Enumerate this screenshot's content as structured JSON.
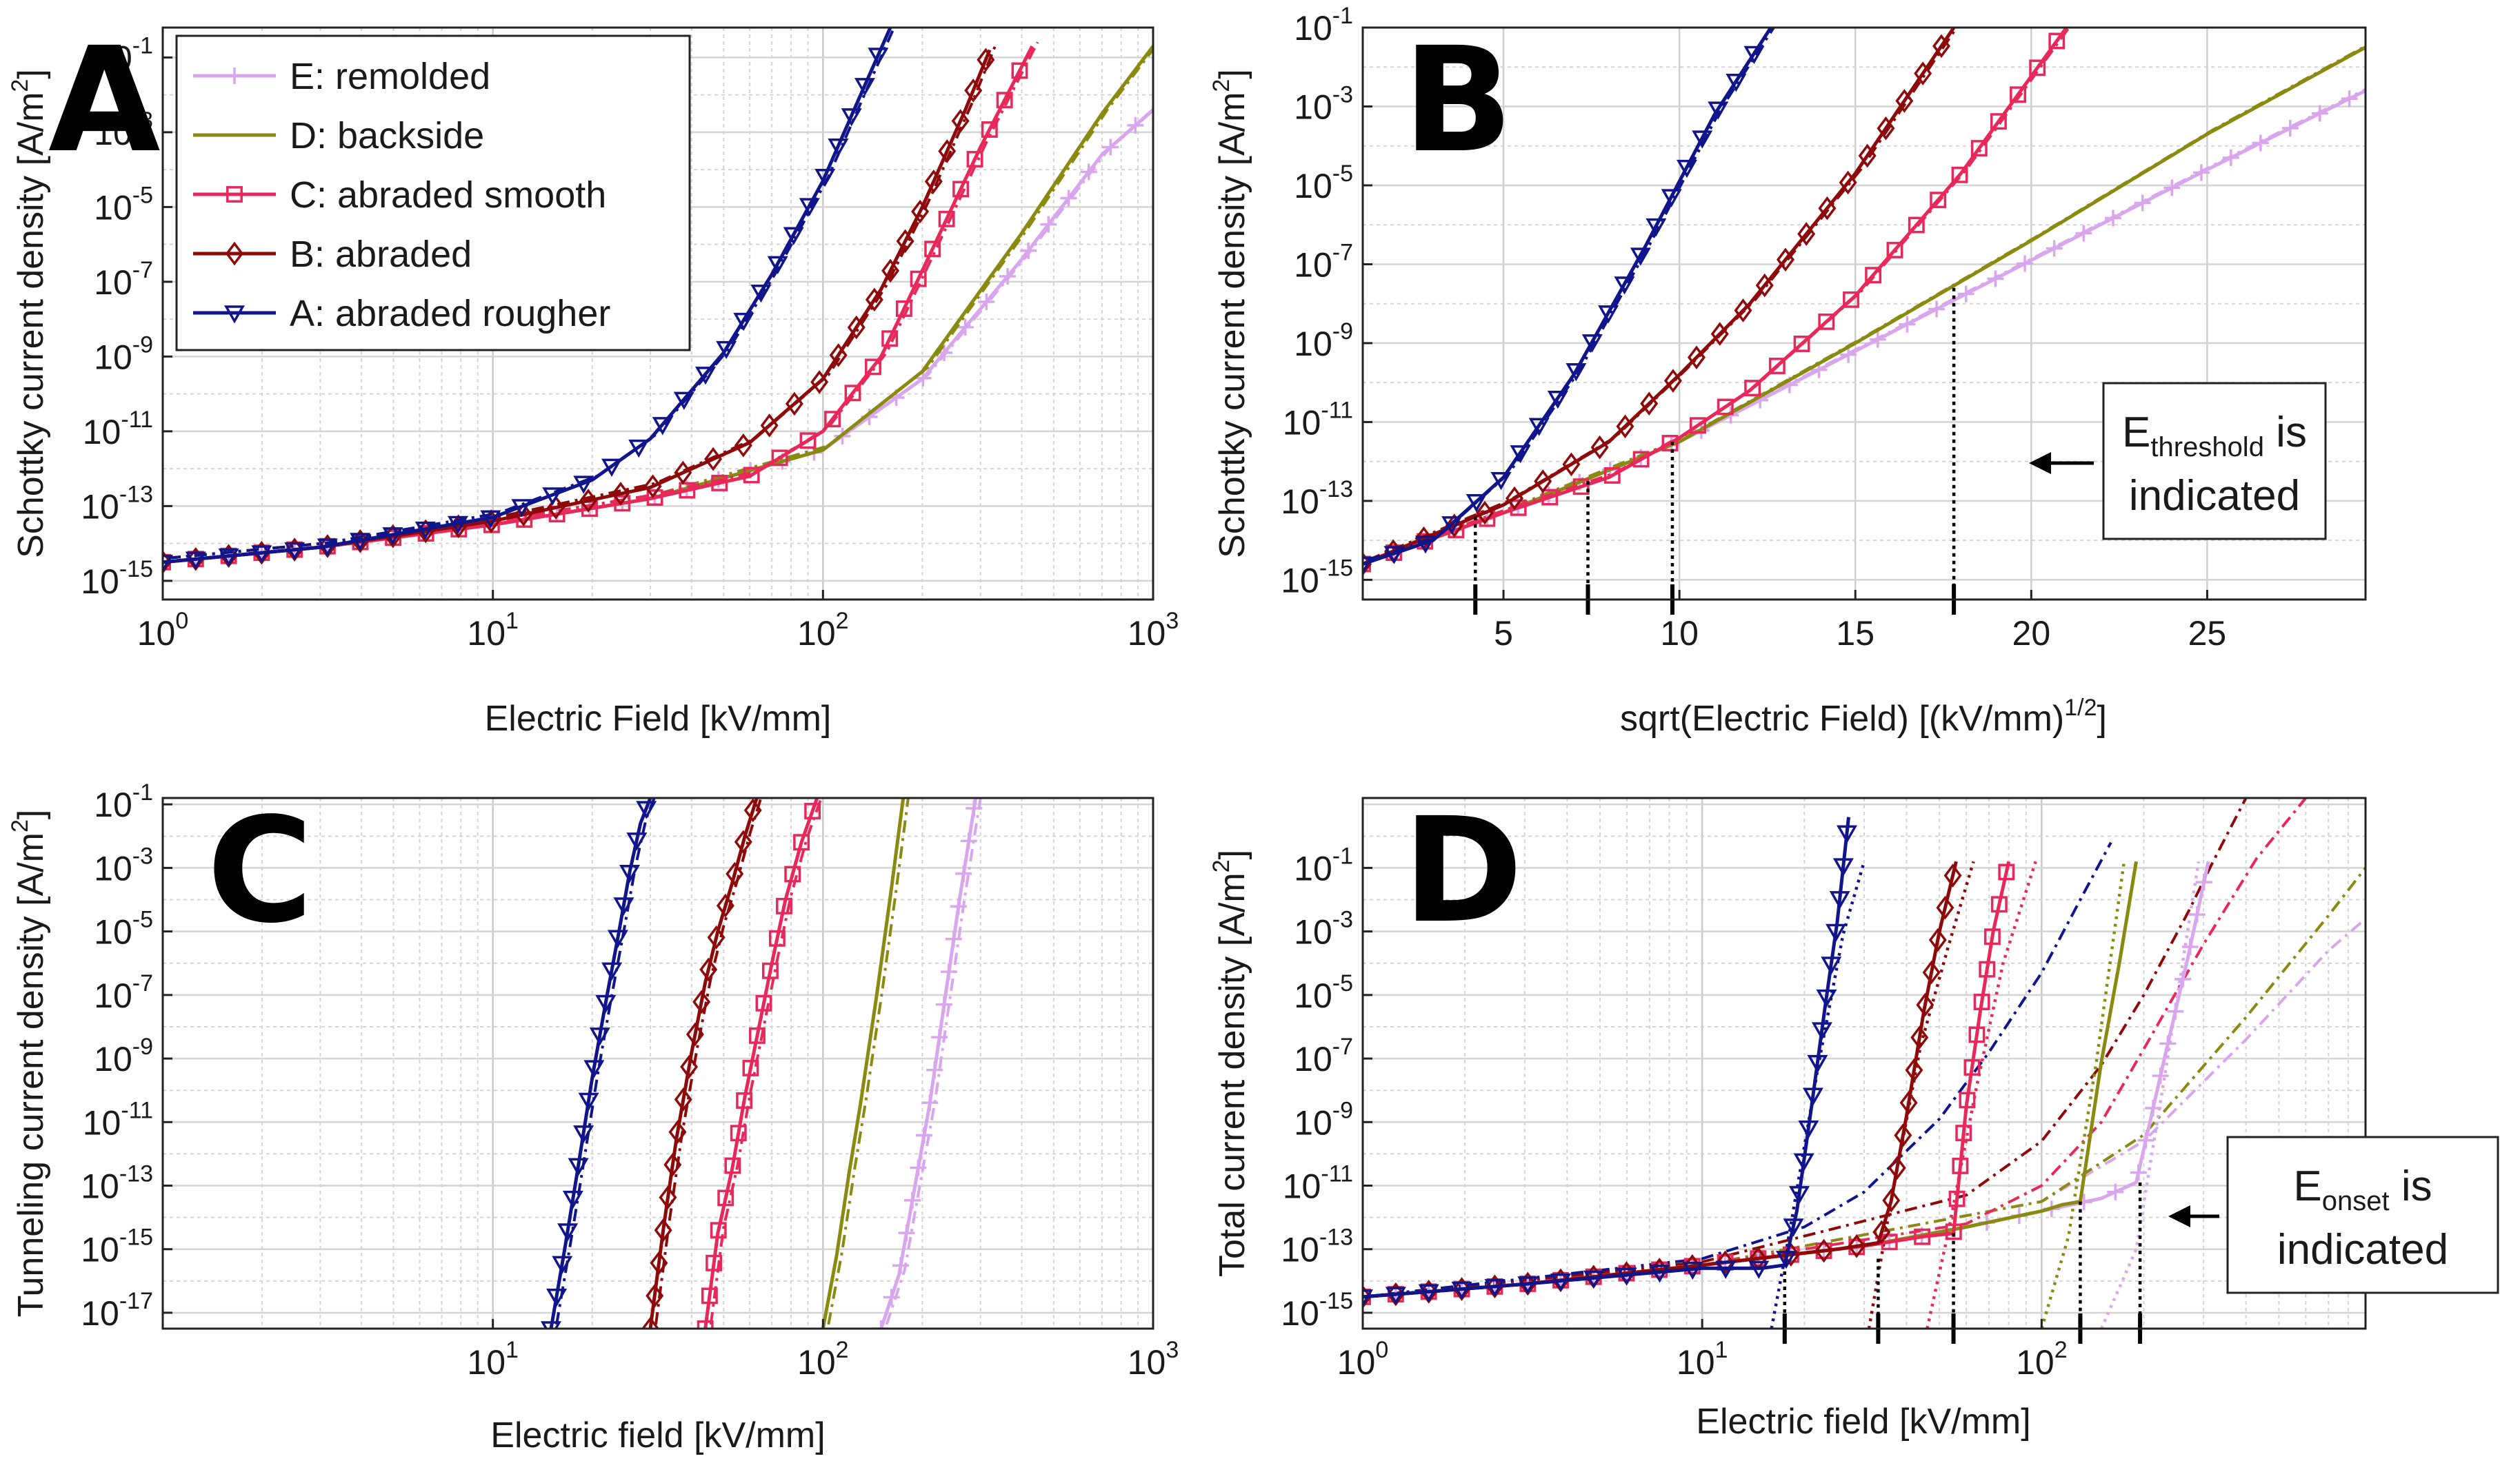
{
  "colors": {
    "E": "#d9a6ee",
    "D": "#8a8a10",
    "C": "#e8285a",
    "B": "#8e0a0a",
    "A": "#10158c"
  },
  "legend": [
    {
      "key": "E",
      "label": "E: remolded",
      "marker": "plus"
    },
    {
      "key": "D",
      "label": "D: backside",
      "marker": "none"
    },
    {
      "key": "C",
      "label": "C: abraded smooth",
      "marker": "square"
    },
    {
      "key": "B",
      "label": "B: abraded",
      "marker": "diamond"
    },
    {
      "key": "A",
      "label": "A: abraded rougher",
      "marker": "triangle"
    }
  ],
  "chart_data": [
    {
      "panel": "A",
      "type": "line",
      "xscale": "log",
      "yscale": "log",
      "xlabel": "Electric Field [kV/mm]",
      "ylabel": "Schottky current density [A/m",
      "ylabel_sup": "2",
      "ylabel_end": "]",
      "xlim": [
        1,
        1000
      ],
      "ylim_exp": [
        -15.5,
        -0.2
      ],
      "xticks": [
        {
          "v": 1,
          "base": "10",
          "exp": "0"
        },
        {
          "v": 10,
          "base": "10",
          "exp": "1"
        },
        {
          "v": 100,
          "base": "10",
          "exp": "2"
        },
        {
          "v": 1000,
          "base": "10",
          "exp": "3"
        }
      ],
      "yticks": [
        {
          "e": -1,
          "base": "10",
          "exp": "-1"
        },
        {
          "e": -3,
          "base": "10",
          "exp": "-3"
        },
        {
          "e": -5,
          "base": "10",
          "exp": "-5"
        },
        {
          "e": -7,
          "base": "10",
          "exp": "-7"
        },
        {
          "e": -9,
          "base": "10",
          "exp": "-9"
        },
        {
          "e": -11,
          "base": "10",
          "exp": "-11"
        },
        {
          "e": -13,
          "base": "10",
          "exp": "-13"
        },
        {
          "e": -15,
          "base": "10",
          "exp": "-15"
        }
      ],
      "series": [
        {
          "name": "E: remolded",
          "key": "E",
          "x": [
            1,
            3,
            10,
            30,
            100,
            200,
            400,
            700,
            1000
          ],
          "log10y": [
            -14.5,
            -14.1,
            -13.5,
            -12.8,
            -11.5,
            -9.6,
            -6.4,
            -3.6,
            -2.4
          ]
        },
        {
          "name": "D: backside",
          "key": "D",
          "x": [
            1,
            3,
            10,
            30,
            100,
            200,
            400,
            700,
            1000
          ],
          "log10y": [
            -14.5,
            -14.1,
            -13.5,
            -12.8,
            -11.5,
            -9.4,
            -5.7,
            -2.5,
            -0.7
          ]
        },
        {
          "name": "C: abraded smooth",
          "key": "C",
          "x": [
            1,
            3,
            10,
            30,
            60,
            100,
            150,
            200,
            300,
            430
          ],
          "log10y": [
            -14.5,
            -14.1,
            -13.5,
            -12.8,
            -12.2,
            -11.0,
            -9.0,
            -6.7,
            -3.4,
            -0.7
          ]
        },
        {
          "name": "B: abraded",
          "key": "B",
          "x": [
            1,
            3,
            10,
            30,
            60,
            100,
            150,
            200,
            270,
            320
          ],
          "log10y": [
            -14.5,
            -14.1,
            -13.4,
            -12.5,
            -11.3,
            -9.6,
            -7.2,
            -5.0,
            -2.4,
            -0.8
          ]
        },
        {
          "name": "A: abraded rougher",
          "key": "A",
          "x": [
            1,
            3,
            10,
            20,
            30,
            50,
            70,
            100,
            130,
            160
          ],
          "log10y": [
            -14.5,
            -14.1,
            -13.3,
            -12.3,
            -11.2,
            -8.9,
            -6.8,
            -4.3,
            -2.0,
            -0.2
          ]
        }
      ]
    },
    {
      "panel": "B",
      "type": "line",
      "xscale": "linear",
      "yscale": "log",
      "xlabel": "sqrt(Electric Field) [(kV/mm)",
      "xlabel_sup": "1/2",
      "xlabel_end": "]",
      "ylabel": "Schottky current density [A/m",
      "ylabel_sup": "2",
      "ylabel_end": "]",
      "xlim": [
        1,
        29.5
      ],
      "ylim_exp": [
        -15.5,
        -1
      ],
      "xticks": [
        {
          "v": 5,
          "label": "5"
        },
        {
          "v": 10,
          "label": "10"
        },
        {
          "v": 15,
          "label": "15"
        },
        {
          "v": 20,
          "label": "20"
        },
        {
          "v": 25,
          "label": "25"
        }
      ],
      "yticks": [
        {
          "e": -1,
          "base": "10",
          "exp": "-1"
        },
        {
          "e": -3,
          "base": "10",
          "exp": "-3"
        },
        {
          "e": -5,
          "base": "10",
          "exp": "-5"
        },
        {
          "e": -7,
          "base": "10",
          "exp": "-7"
        },
        {
          "e": -9,
          "base": "10",
          "exp": "-9"
        },
        {
          "e": -11,
          "base": "10",
          "exp": "-11"
        },
        {
          "e": -13,
          "base": "10",
          "exp": "-13"
        },
        {
          "e": -15,
          "base": "10",
          "exp": "-15"
        }
      ],
      "thresholds": [
        {
          "x": 4.2,
          "log10y": -13.4
        },
        {
          "x": 7.4,
          "log10y": -12.5
        },
        {
          "x": 9.8,
          "log10y": -11.5
        },
        {
          "x": 17.8,
          "log10y": -7.6
        }
      ],
      "series": [
        {
          "name": "E: remolded",
          "key": "E",
          "x": [
            1,
            5,
            10,
            15,
            20,
            25,
            29.5
          ],
          "log10y": [
            -14.6,
            -13.3,
            -11.5,
            -9.2,
            -6.9,
            -4.6,
            -2.6
          ]
        },
        {
          "name": "D: backside",
          "key": "D",
          "x": [
            1,
            5,
            10,
            15,
            20,
            25,
            29.5
          ],
          "log10y": [
            -14.6,
            -13.3,
            -11.5,
            -9.0,
            -6.4,
            -3.7,
            -1.5
          ]
        },
        {
          "name": "C: abraded smooth",
          "key": "C",
          "x": [
            1,
            5,
            8,
            10,
            12,
            15,
            18,
            21
          ],
          "log10y": [
            -14.6,
            -13.3,
            -12.4,
            -11.4,
            -10.2,
            -7.8,
            -4.7,
            -1.0
          ]
        },
        {
          "name": "B: abraded",
          "key": "B",
          "x": [
            1,
            5,
            8,
            10,
            12,
            15,
            17.8
          ],
          "log10y": [
            -14.6,
            -13.1,
            -11.5,
            -9.8,
            -8.0,
            -4.7,
            -1.0
          ]
        },
        {
          "name": "A: abraded rougher",
          "key": "A",
          "x": [
            1,
            3,
            5,
            7,
            9,
            11,
            12.6
          ],
          "log10y": [
            -14.6,
            -14.0,
            -12.4,
            -9.8,
            -6.6,
            -3.2,
            -1.0
          ]
        }
      ],
      "annotation": {
        "e_text": "E",
        "sub_text": "threshold",
        "rest_text": " is",
        "line2": "indicated"
      }
    },
    {
      "panel": "C",
      "type": "line",
      "xscale": "log",
      "yscale": "log",
      "xlabel": "Electric field [kV/mm]",
      "ylabel": "Tunneling current density [A/m",
      "ylabel_sup": "2",
      "ylabel_end": "]",
      "xlim": [
        1,
        1000
      ],
      "ylim_exp": [
        -17.5,
        -0.8
      ],
      "xticks": [
        {
          "v": 10,
          "base": "10",
          "exp": "1"
        },
        {
          "v": 100,
          "base": "10",
          "exp": "2"
        },
        {
          "v": 1000,
          "base": "10",
          "exp": "3"
        }
      ],
      "yticks": [
        {
          "e": -1,
          "base": "10",
          "exp": "-1"
        },
        {
          "e": -3,
          "base": "10",
          "exp": "-3"
        },
        {
          "e": -5,
          "base": "10",
          "exp": "-5"
        },
        {
          "e": -7,
          "base": "10",
          "exp": "-7"
        },
        {
          "e": -9,
          "base": "10",
          "exp": "-9"
        },
        {
          "e": -11,
          "base": "10",
          "exp": "-11"
        },
        {
          "e": -13,
          "base": "10",
          "exp": "-13"
        },
        {
          "e": -15,
          "base": "10",
          "exp": "-15"
        },
        {
          "e": -17,
          "base": "10",
          "exp": "-17"
        }
      ],
      "series": [
        {
          "name": "E: remolded",
          "key": "E",
          "x": [
            150,
            170,
            190,
            210,
            235,
            260,
            290
          ],
          "log10y": [
            -17.5,
            -15.8,
            -13.0,
            -10.5,
            -7.0,
            -3.9,
            -0.8
          ]
        },
        {
          "name": "D: backside",
          "key": "D",
          "x": [
            100,
            110,
            120,
            130,
            145,
            160,
            175
          ],
          "log10y": [
            -17.5,
            -15.2,
            -12.6,
            -10.4,
            -7.1,
            -3.9,
            -0.8
          ]
        },
        {
          "name": "C: abraded smooth",
          "key": "C",
          "x": [
            44,
            48,
            53,
            58,
            64,
            70,
            77,
            86,
            96
          ],
          "log10y": [
            -17.5,
            -14.5,
            -12.5,
            -10.2,
            -8.0,
            -6.0,
            -4.0,
            -2.2,
            -0.8
          ]
        },
        {
          "name": "B: abraded",
          "key": "B",
          "x": [
            30,
            33,
            36,
            40,
            44,
            48,
            53,
            58,
            63
          ],
          "log10y": [
            -17.5,
            -14.2,
            -11.5,
            -8.8,
            -6.6,
            -5.0,
            -3.5,
            -2.0,
            -0.8
          ]
        },
        {
          "name": "A: abraded rougher",
          "key": "A",
          "x": [
            15,
            16.5,
            18,
            20,
            22,
            24,
            26,
            28,
            30
          ],
          "log10y": [
            -17.5,
            -15.0,
            -12.6,
            -9.6,
            -7.2,
            -5.1,
            -3.1,
            -1.6,
            -0.8
          ]
        }
      ]
    },
    {
      "panel": "D",
      "type": "line",
      "xscale": "log",
      "yscale": "log",
      "xlabel": "Electric field [kV/mm]",
      "ylabel": "Total current density [A/m",
      "ylabel_sup": "2",
      "ylabel_end": "]",
      "xlim": [
        1,
        900
      ],
      "ylim_exp": [
        -15.5,
        1.2
      ],
      "xticks": [
        {
          "v": 1,
          "base": "10",
          "exp": "0"
        },
        {
          "v": 10,
          "base": "10",
          "exp": "1"
        },
        {
          "v": 100,
          "base": "10",
          "exp": "2"
        }
      ],
      "yticks": [
        {
          "e": -1,
          "base": "10",
          "exp": "-1"
        },
        {
          "e": -3,
          "base": "10",
          "exp": "-3"
        },
        {
          "e": -5,
          "base": "10",
          "exp": "-5"
        },
        {
          "e": -7,
          "base": "10",
          "exp": "-7"
        },
        {
          "e": -9,
          "base": "10",
          "exp": "-9"
        },
        {
          "e": -11,
          "base": "10",
          "exp": "-11"
        },
        {
          "e": -13,
          "base": "10",
          "exp": "-13"
        },
        {
          "e": -15,
          "base": "10",
          "exp": "-15"
        }
      ],
      "onsets": [
        {
          "x": 17.5,
          "log10y": -13.7
        },
        {
          "x": 33,
          "log10y": -13.3
        },
        {
          "x": 55,
          "log10y": -12.5
        },
        {
          "x": 130,
          "log10y": -11.5
        },
        {
          "x": 195,
          "log10y": -10.9
        }
      ],
      "series": [
        {
          "name": "E: remolded",
          "key": "E",
          "x": [
            1,
            3,
            10,
            30,
            60,
            100,
            150,
            190,
            230,
            270,
            310
          ],
          "log10y": [
            -14.5,
            -14.1,
            -13.5,
            -12.9,
            -12.3,
            -11.8,
            -11.4,
            -10.9,
            -7.0,
            -3.8,
            -0.8
          ]
        },
        {
          "name": "D: backside",
          "key": "D",
          "x": [
            1,
            3,
            10,
            30,
            60,
            100,
            115,
            130,
            150,
            170,
            190
          ],
          "log10y": [
            -14.5,
            -14.1,
            -13.5,
            -12.9,
            -12.3,
            -11.8,
            -11.6,
            -11.5,
            -7.1,
            -3.9,
            -0.8
          ]
        },
        {
          "name": "C: abraded smooth",
          "key": "C",
          "x": [
            1,
            3,
            10,
            30,
            45,
            55,
            60,
            66,
            72,
            80
          ],
          "log10y": [
            -14.5,
            -14.1,
            -13.5,
            -12.9,
            -12.6,
            -12.5,
            -8.5,
            -5.5,
            -3.0,
            -0.8
          ]
        },
        {
          "name": "B: abraded",
          "key": "B",
          "x": [
            1,
            3,
            10,
            25,
            33,
            36,
            40,
            45,
            50,
            56
          ],
          "log10y": [
            -14.5,
            -14.1,
            -13.5,
            -13.0,
            -12.8,
            -11.5,
            -8.8,
            -5.5,
            -3.0,
            -0.8
          ]
        },
        {
          "name": "A: abraded rougher",
          "key": "A",
          "x": [
            1,
            3,
            10,
            15,
            17.5,
            19,
            21,
            23,
            25,
            27
          ],
          "log10y": [
            -14.5,
            -14.1,
            -13.6,
            -13.6,
            -13.5,
            -11.8,
            -8.5,
            -5.4,
            -2.7,
            0.6
          ]
        }
      ],
      "schottky_series": [
        {
          "key": "E",
          "x": [
            1,
            10,
            100,
            200,
            400,
            700,
            900
          ],
          "log10y": [
            -14.5,
            -13.5,
            -11.5,
            -9.6,
            -6.4,
            -3.6,
            -2.6
          ]
        },
        {
          "key": "D",
          "x": [
            1,
            10,
            100,
            200,
            400,
            700,
            900
          ],
          "log10y": [
            -14.5,
            -13.5,
            -11.5,
            -9.4,
            -5.7,
            -2.5,
            -1.0
          ]
        },
        {
          "key": "C",
          "x": [
            1,
            10,
            60,
            100,
            150,
            200,
            300,
            430,
            600
          ],
          "log10y": [
            -14.5,
            -13.5,
            -12.2,
            -11.0,
            -9.0,
            -6.7,
            -3.4,
            -0.7,
            1.2
          ]
        },
        {
          "key": "B",
          "x": [
            1,
            10,
            60,
            100,
            150,
            200,
            270,
            320,
            400
          ],
          "log10y": [
            -14.5,
            -13.4,
            -11.3,
            -9.6,
            -7.2,
            -5.0,
            -2.4,
            -0.8,
            1.2
          ]
        },
        {
          "key": "A",
          "x": [
            1,
            10,
            20,
            30,
            50,
            70,
            100,
            130,
            160
          ],
          "log10y": [
            -14.5,
            -13.3,
            -12.3,
            -11.2,
            -8.9,
            -6.8,
            -4.3,
            -2.0,
            -0.2
          ]
        }
      ],
      "tunneling_series": [
        {
          "key": "E",
          "x": [
            150,
            190,
            235,
            290
          ],
          "log10y": [
            -15.5,
            -13.0,
            -7.0,
            -0.8
          ]
        },
        {
          "key": "D",
          "x": [
            100,
            120,
            145,
            175
          ],
          "log10y": [
            -15.5,
            -12.6,
            -7.1,
            -0.8
          ]
        },
        {
          "key": "C",
          "x": [
            46,
            53,
            64,
            77,
            96
          ],
          "log10y": [
            -15.5,
            -12.5,
            -8.0,
            -4.0,
            -0.8
          ]
        },
        {
          "key": "B",
          "x": [
            31,
            36,
            44,
            53,
            63
          ],
          "log10y": [
            -15.5,
            -11.5,
            -6.6,
            -3.5,
            -0.8
          ]
        },
        {
          "key": "A",
          "x": [
            16,
            18,
            22,
            26,
            30
          ],
          "log10y": [
            -15.5,
            -12.6,
            -7.2,
            -3.1,
            -0.8
          ]
        }
      ],
      "annotation": {
        "e_text": "E",
        "sub_text": "onset",
        "rest_text": " is",
        "line2": "indicated"
      }
    }
  ]
}
